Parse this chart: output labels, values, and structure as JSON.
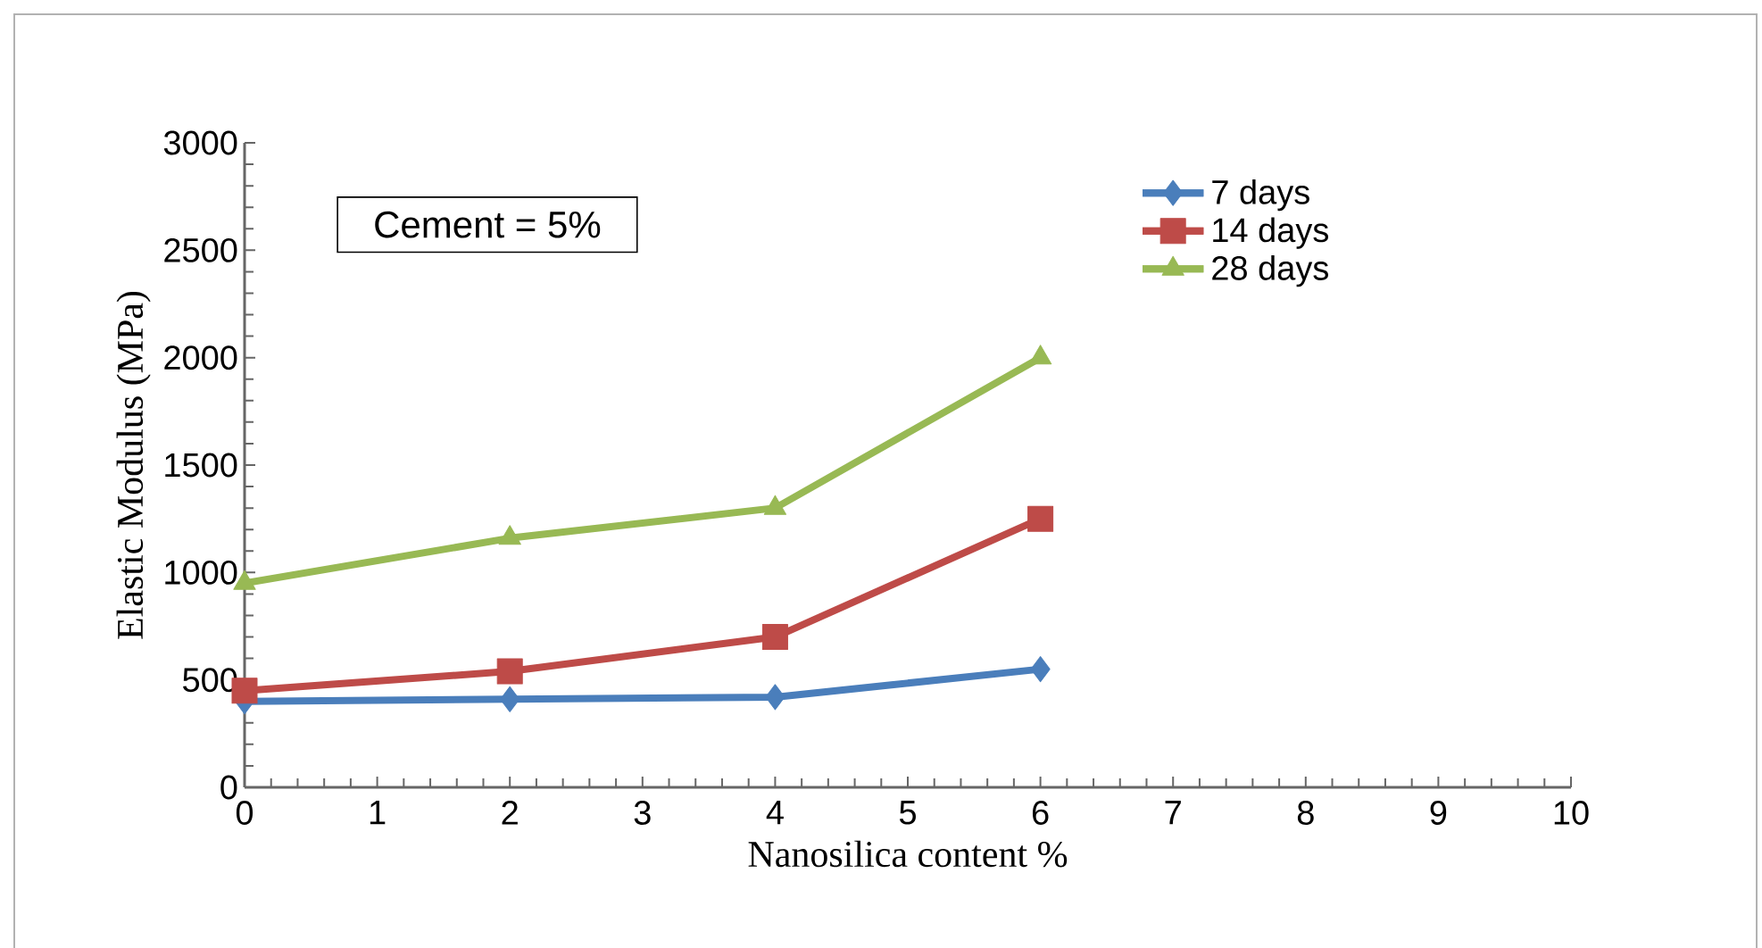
{
  "chart_data": {
    "type": "line",
    "xlabel": "Nanosilica content %",
    "ylabel": "Elastic Modulus (MPa)",
    "annotations": [
      "Cement = 5%"
    ],
    "x": [
      0,
      2,
      4,
      6
    ],
    "series": [
      {
        "name": "7 days",
        "color": "#4a7ebb",
        "marker": "diamond",
        "values": [
          400,
          410,
          420,
          550
        ]
      },
      {
        "name": "14 days",
        "color": "#be4b48",
        "marker": "square",
        "values": [
          450,
          540,
          700,
          1250
        ]
      },
      {
        "name": "28 days",
        "color": "#98b954",
        "marker": "triangle",
        "values": [
          950,
          1160,
          1300,
          2000
        ]
      }
    ],
    "xlim": [
      0,
      10
    ],
    "xticks": [
      0,
      1,
      2,
      3,
      4,
      5,
      6,
      7,
      8,
      9,
      10
    ],
    "ylim": [
      0,
      3000
    ],
    "yticks": [
      0,
      500,
      1000,
      1500,
      2000,
      2500,
      3000
    ],
    "grid": false,
    "legend": "top right",
    "line_style": "solid"
  }
}
